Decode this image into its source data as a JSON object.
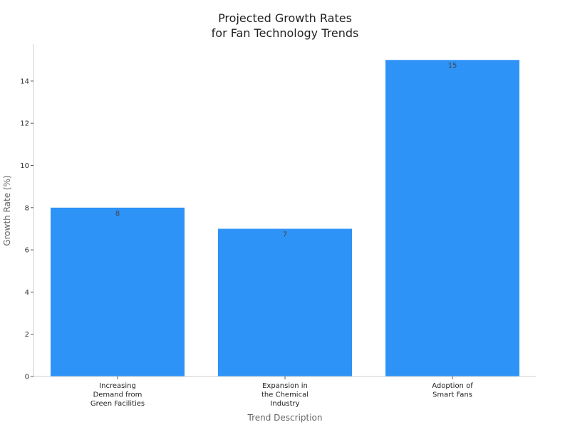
{
  "chart_data": {
    "type": "bar",
    "title_lines": [
      "Projected Growth Rates",
      "for Fan Technology Trends"
    ],
    "xlabel": "Trend Description",
    "ylabel": "Growth Rate (%)",
    "categories": [
      [
        "Increasing",
        "Demand from",
        "Green Facilities"
      ],
      [
        "Expansion in",
        "the Chemical",
        "Industry"
      ],
      [
        "Adoption of",
        "Smart Fans"
      ]
    ],
    "values": [
      8,
      7,
      15
    ],
    "data_labels": [
      "8",
      "7",
      "15"
    ],
    "ylim": [
      0,
      15.75
    ],
    "yticks": [
      0,
      2,
      4,
      6,
      8,
      10,
      12,
      14
    ],
    "grid": false,
    "bar_color": "#2e93f7"
  }
}
